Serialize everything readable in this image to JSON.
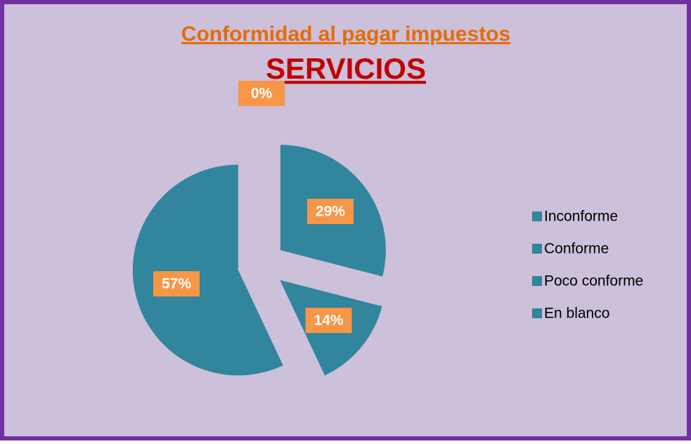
{
  "chart_data": {
    "type": "pie",
    "title": "Conformidad  al  pagar impuestos",
    "subtitle": "SERVICIOS",
    "categories": [
      "Inconforme",
      "Conforme",
      "Poco conforme",
      "En blanco"
    ],
    "values": [
      29,
      14,
      57,
      0
    ],
    "value_labels": [
      "29%",
      "14%",
      "57%",
      "0%"
    ],
    "colors": [
      "#31859c",
      "#31859c",
      "#31859c",
      "#31859c"
    ],
    "legend": "right"
  }
}
